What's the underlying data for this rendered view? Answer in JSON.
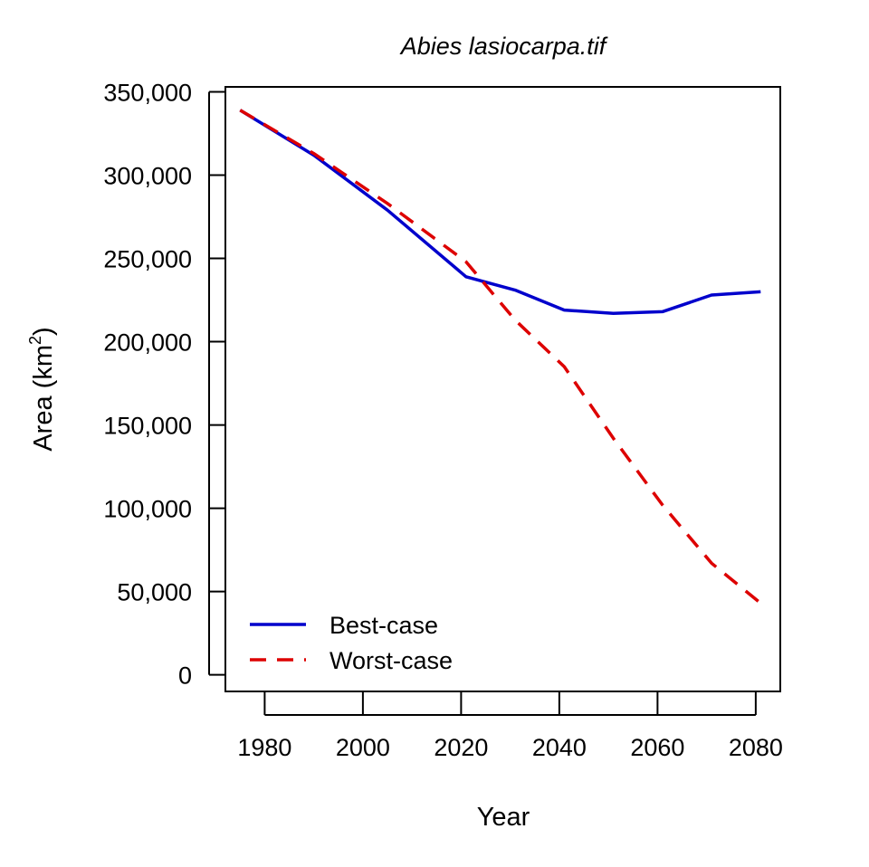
{
  "chart_data": {
    "type": "line",
    "title": "Abies lasiocarpa.tif",
    "xlabel": "Year",
    "ylabel": "Area (km",
    "ylabel_sup": "2",
    "ylabel_close": ")",
    "xlim": [
      1972,
      2085
    ],
    "ylim": [
      -10000,
      353000
    ],
    "x_ticks": [
      1980,
      2000,
      2020,
      2040,
      2060,
      2080
    ],
    "x_tick_labels": [
      "1980",
      "2000",
      "2020",
      "2040",
      "2060",
      "2080"
    ],
    "y_ticks": [
      0,
      50000,
      100000,
      150000,
      200000,
      250000,
      300000,
      350000
    ],
    "y_tick_labels": [
      "0",
      "50,000",
      "100,000",
      "150,000",
      "200,000",
      "250,000",
      "300,000",
      "350,000"
    ],
    "grid": false,
    "legend_position": "bottom-left",
    "series": [
      {
        "name": "Best-case",
        "color": "#0000cc",
        "dash": "solid",
        "x": [
          1975,
          1990,
          2005,
          2021,
          2031,
          2041,
          2051,
          2061,
          2071,
          2081
        ],
        "y": [
          339000,
          312000,
          279000,
          239000,
          231000,
          219000,
          217000,
          218000,
          228000,
          230000
        ]
      },
      {
        "name": "Worst-case",
        "color": "#dd0000",
        "dash": "dashed",
        "x": [
          1975,
          1990,
          2005,
          2021,
          2031,
          2041,
          2051,
          2061,
          2071,
          2081
        ],
        "y": [
          339000,
          313000,
          283000,
          248000,
          213000,
          185000,
          142000,
          102000,
          67000,
          43000
        ]
      }
    ]
  }
}
